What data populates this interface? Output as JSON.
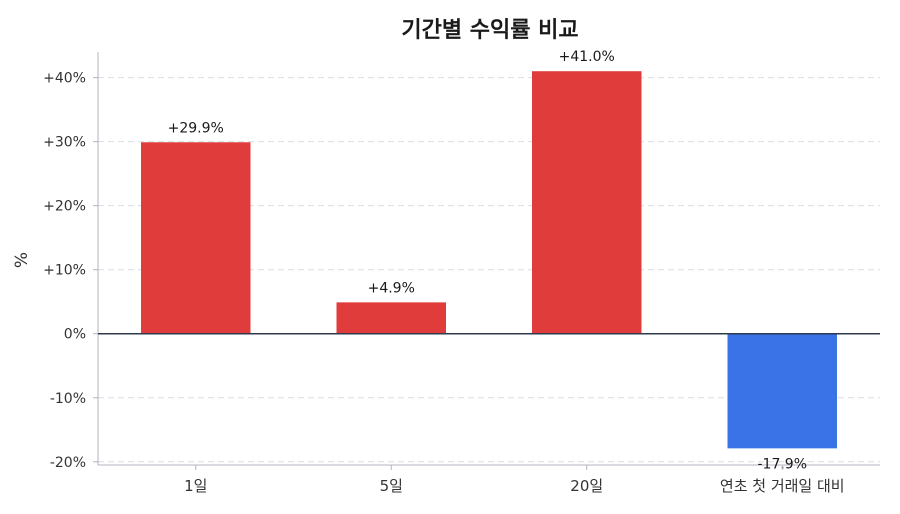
{
  "chart_data": {
    "type": "bar",
    "title": "기간별 수익률 비교",
    "xlabel": "",
    "ylabel": "%",
    "categories": [
      "1일",
      "5일",
      "20일",
      "연초 첫 거래일 대비"
    ],
    "values": [
      29.9,
      4.9,
      41.0,
      -17.9
    ],
    "value_labels": [
      "+29.9%",
      "+4.9%",
      "+41.0%",
      "-17.9%"
    ],
    "ylim": [
      -20.5,
      44
    ],
    "yticks": [
      -20,
      -10,
      0,
      10,
      20,
      30,
      40
    ],
    "ytick_labels": [
      "-20%",
      "-10%",
      "0%",
      "+10%",
      "+20%",
      "+30%",
      "+40%"
    ],
    "grid": true,
    "colors": {
      "positive": "#e03c3c",
      "negative": "#3a73e8",
      "zero_line": "#2f3b4c",
      "grid": "#d9dde3",
      "axis": "#b0b6bf",
      "text": "#333333"
    }
  }
}
